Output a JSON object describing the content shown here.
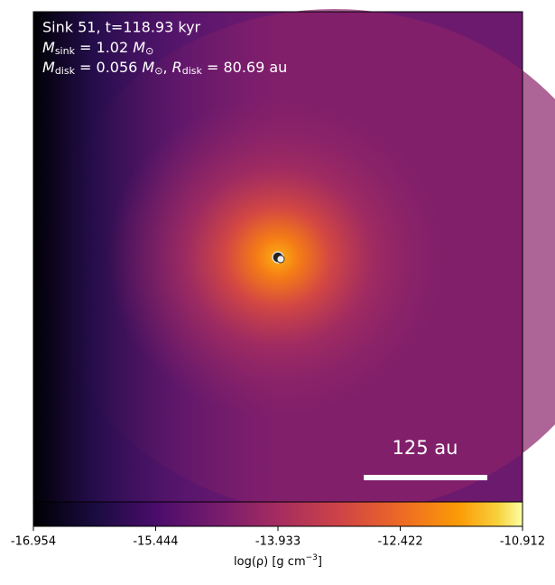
{
  "chart_data": {
    "type": "image",
    "annotations": {
      "title": "Sink 51, t=118.93 kyr",
      "mass_sink": {
        "symbol": "M",
        "subscript": "sink",
        "text": " = 1.02 ",
        "unit": "M",
        "unit_subscript": "⊙"
      },
      "mass_disk": {
        "symbol": "M",
        "subscript": "disk",
        "text": " = 0.056 ",
        "unit": "M",
        "unit_subscript": "⊙",
        "sep": ", ",
        "symbol2": "R",
        "subscript2": "disk",
        "text2": " = 80.69 au"
      }
    },
    "scale_bar": "125 au",
    "colorbar": {
      "clim": [
        -16.954,
        -10.912
      ],
      "ticks": [
        -16.954,
        -15.444,
        -13.933,
        -12.422,
        -10.912
      ],
      "label": {
        "text": "log(ρ) [g cm",
        "superscript": "−3",
        "close": "]"
      }
    }
  }
}
